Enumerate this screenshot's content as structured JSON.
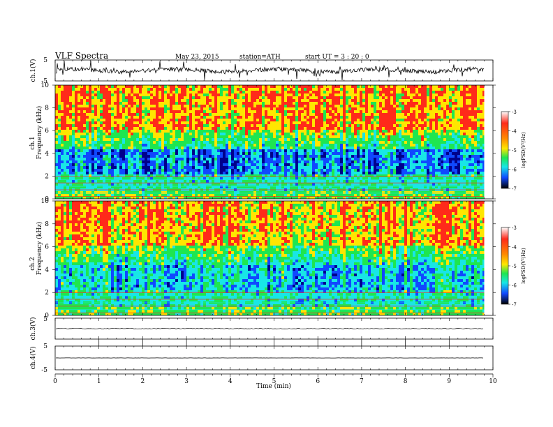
{
  "header": {
    "title": "VLF  Spectra",
    "date": "May 23, 2015",
    "station": "station=ATH",
    "start": "start  UT  =   3  : 20 : 0"
  },
  "chart_data": [
    {
      "type": "line",
      "name": "ch1-waveform",
      "ylabel": "ch.1(V)",
      "ylim": [
        -5,
        5
      ],
      "yticks": [
        "5",
        "-5"
      ],
      "baseline": 0,
      "x_end": 9.8
    },
    {
      "type": "heatmap",
      "name": "ch1-spectrogram",
      "ylabel": "ch.1\nFrequency  (kHz)",
      "ylabel_lines": [
        "ch.1",
        "Frequency  (kHz)"
      ],
      "ylim": [
        0,
        10
      ],
      "yticks": [
        "0",
        "2",
        "4",
        "6",
        "8",
        "10"
      ],
      "colorbar": {
        "label": "logPSD(V²/Hz)",
        "range": [
          -7,
          -3
        ],
        "ticks": [
          "-3",
          "-4",
          "-5",
          "-6",
          "-7"
        ]
      }
    },
    {
      "type": "heatmap",
      "name": "ch2-spectrogram",
      "ylabel_lines": [
        "ch.2",
        "Frequency  (kHz)"
      ],
      "ylim": [
        0,
        10
      ],
      "yticks": [
        "0",
        "2",
        "4",
        "6",
        "8",
        "10"
      ],
      "colorbar": {
        "label": "logPSD(V²/Hz)",
        "range": [
          -7,
          -3
        ],
        "ticks": [
          "-3",
          "-4",
          "-5",
          "-6",
          "-7"
        ]
      }
    },
    {
      "type": "line",
      "name": "ch3-waveform",
      "ylabel": "ch.3(V)",
      "ylim": [
        -5,
        5
      ],
      "yticks": [
        "5"
      ],
      "baseline": 0
    },
    {
      "type": "line",
      "name": "ch4-waveform",
      "ylabel": "ch.4(V)",
      "ylim": [
        -5,
        5
      ],
      "yticks": [
        "5",
        "-5"
      ],
      "baseline": 0
    }
  ],
  "x_axis": {
    "label": "Time  (min)",
    "range": [
      0,
      10
    ],
    "ticks": [
      "0",
      "1",
      "2",
      "3",
      "4",
      "5",
      "6",
      "7",
      "8",
      "9",
      "10"
    ]
  },
  "colors": {
    "red": "#ff2a1a",
    "yellow": "#ffe600",
    "green": "#1ee650",
    "cyan": "#18e6e6",
    "blue": "#1048ff",
    "navy": "#00008c"
  }
}
